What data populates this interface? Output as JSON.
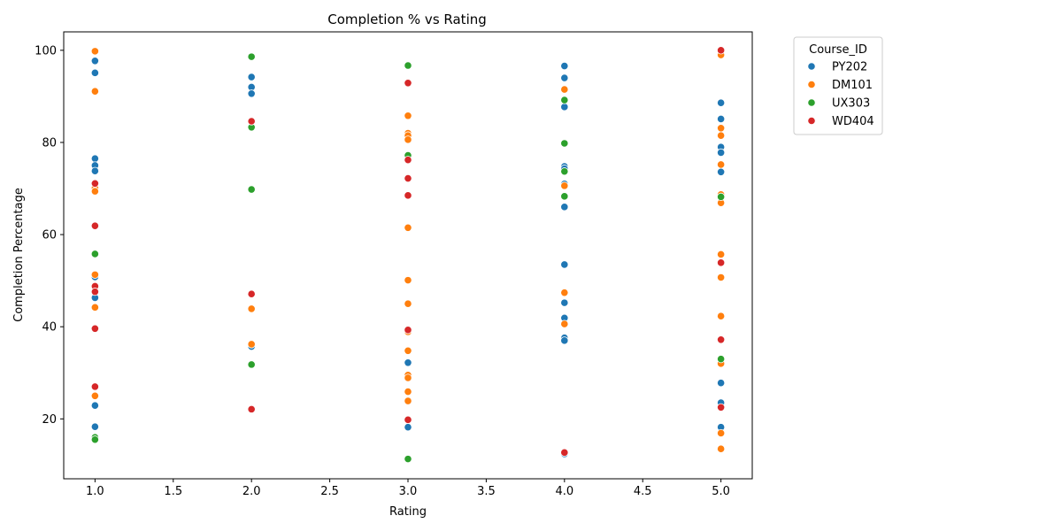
{
  "chart_data": {
    "type": "scatter",
    "title": "Completion % vs Rating",
    "xlabel": "Rating",
    "ylabel": "Completion Percentage",
    "xlim": [
      0.8,
      5.2
    ],
    "ylim": [
      7,
      104
    ],
    "x_ticks": [
      "1.0",
      "1.5",
      "2.0",
      "2.5",
      "3.0",
      "3.5",
      "4.0",
      "4.5",
      "5.0"
    ],
    "y_ticks": [
      "20",
      "40",
      "60",
      "80",
      "100"
    ],
    "grid": false,
    "legend": {
      "title": "Course_ID",
      "placement": "outside-top-right"
    },
    "series": [
      {
        "name": "PY202",
        "color": "#1f77b4",
        "points": [
          [
            1,
            97.7
          ],
          [
            1,
            95.1
          ],
          [
            1,
            76.5
          ],
          [
            1,
            75.0
          ],
          [
            1,
            73.8
          ],
          [
            1,
            50.8
          ],
          [
            1,
            46.3
          ],
          [
            1,
            22.9
          ],
          [
            1,
            18.3
          ],
          [
            2,
            94.2
          ],
          [
            2,
            92.0
          ],
          [
            2,
            90.6
          ],
          [
            2,
            35.7
          ],
          [
            3,
            32.2
          ],
          [
            3,
            18.2
          ],
          [
            4,
            96.6
          ],
          [
            4,
            94.0
          ],
          [
            4,
            87.7
          ],
          [
            4,
            74.8
          ],
          [
            4,
            74.3
          ],
          [
            4,
            71.0
          ],
          [
            4,
            66.0
          ],
          [
            4,
            53.5
          ],
          [
            4,
            45.2
          ],
          [
            4,
            41.9
          ],
          [
            4,
            37.6
          ],
          [
            4,
            37.0
          ],
          [
            4,
            12.4
          ],
          [
            5,
            88.6
          ],
          [
            5,
            85.1
          ],
          [
            5,
            79.0
          ],
          [
            5,
            77.8
          ],
          [
            5,
            73.6
          ],
          [
            5,
            27.8
          ],
          [
            5,
            23.5
          ],
          [
            5,
            18.2
          ]
        ]
      },
      {
        "name": "DM101",
        "color": "#ff7f0e",
        "points": [
          [
            1,
            99.8
          ],
          [
            1,
            91.1
          ],
          [
            1,
            70.1
          ],
          [
            1,
            69.4
          ],
          [
            1,
            51.3
          ],
          [
            1,
            44.2
          ],
          [
            1,
            26.9
          ],
          [
            1,
            25.0
          ],
          [
            2,
            43.9
          ],
          [
            2,
            36.2
          ],
          [
            3,
            85.8
          ],
          [
            3,
            82.0
          ],
          [
            3,
            81.5
          ],
          [
            3,
            80.6
          ],
          [
            3,
            61.5
          ],
          [
            3,
            50.1
          ],
          [
            3,
            45.0
          ],
          [
            3,
            38.9
          ],
          [
            3,
            34.8
          ],
          [
            3,
            29.5
          ],
          [
            3,
            28.9
          ],
          [
            3,
            25.9
          ],
          [
            3,
            23.9
          ],
          [
            4,
            91.5
          ],
          [
            4,
            70.6
          ],
          [
            4,
            47.4
          ],
          [
            4,
            40.6
          ],
          [
            5,
            99.0
          ],
          [
            5,
            83.1
          ],
          [
            5,
            81.5
          ],
          [
            5,
            75.2
          ],
          [
            5,
            68.7
          ],
          [
            5,
            66.9
          ],
          [
            5,
            55.7
          ],
          [
            5,
            50.7
          ],
          [
            5,
            42.3
          ],
          [
            5,
            32.0
          ],
          [
            5,
            16.9
          ],
          [
            5,
            13.5
          ]
        ]
      },
      {
        "name": "UX303",
        "color": "#2ca02c",
        "points": [
          [
            1,
            55.8
          ],
          [
            1,
            16.0
          ],
          [
            1,
            15.5
          ],
          [
            2,
            98.6
          ],
          [
            2,
            83.3
          ],
          [
            2,
            69.8
          ],
          [
            2,
            31.8
          ],
          [
            3,
            96.7
          ],
          [
            3,
            77.2
          ],
          [
            3,
            11.3
          ],
          [
            4,
            89.2
          ],
          [
            4,
            79.8
          ],
          [
            4,
            73.7
          ],
          [
            4,
            68.3
          ],
          [
            5,
            68.2
          ],
          [
            5,
            33.0
          ]
        ]
      },
      {
        "name": "WD404",
        "color": "#d62728",
        "points": [
          [
            1,
            71.1
          ],
          [
            1,
            61.9
          ],
          [
            1,
            48.8
          ],
          [
            1,
            47.6
          ],
          [
            1,
            39.6
          ],
          [
            1,
            27.0
          ],
          [
            2,
            84.6
          ],
          [
            2,
            47.1
          ],
          [
            2,
            22.1
          ],
          [
            3,
            92.9
          ],
          [
            3,
            76.2
          ],
          [
            3,
            72.2
          ],
          [
            3,
            68.5
          ],
          [
            3,
            39.3
          ],
          [
            3,
            19.8
          ],
          [
            4,
            12.7
          ],
          [
            5,
            100.0
          ],
          [
            5,
            53.9
          ],
          [
            5,
            37.2
          ],
          [
            5,
            22.5
          ]
        ]
      }
    ]
  }
}
